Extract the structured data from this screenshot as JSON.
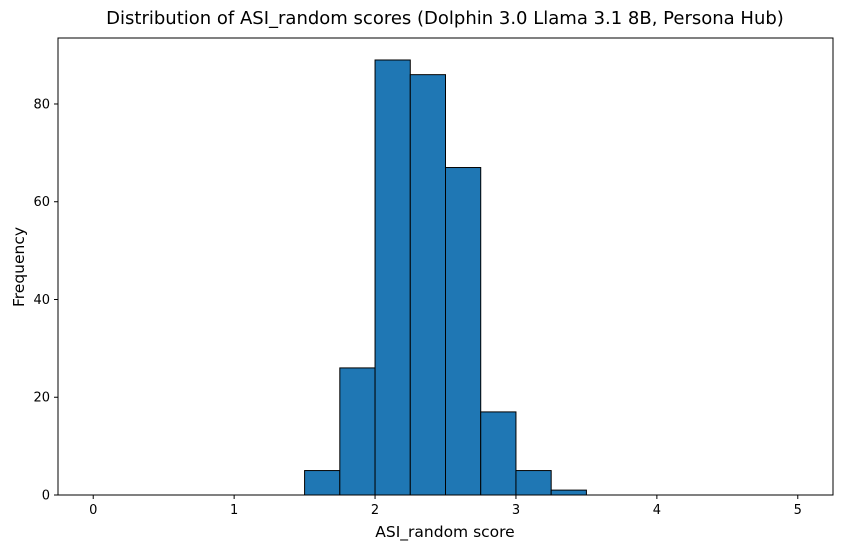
{
  "chart_data": {
    "type": "bar",
    "title": "Distribution of ASI_random scores (Dolphin 3.0 Llama 3.1 8B, Persona Hub)",
    "xlabel": "ASI_random score",
    "ylabel": "Frequency",
    "xlim": [
      -0.25,
      5.25
    ],
    "ylim": [
      0,
      93.5
    ],
    "xticks": [
      "0",
      "1",
      "2",
      "3",
      "4",
      "5"
    ],
    "xtick_values": [
      0,
      1,
      2,
      3,
      4,
      5
    ],
    "yticks": [
      "0",
      "20",
      "40",
      "60",
      "80"
    ],
    "ytick_values": [
      0,
      20,
      40,
      60,
      80
    ],
    "bin_edges": [
      0,
      0.25,
      0.5,
      0.75,
      1.0,
      1.25,
      1.5,
      1.75,
      2.0,
      2.25,
      2.5,
      2.75,
      3.0,
      3.25,
      3.5,
      3.75,
      4.0,
      4.25,
      4.5,
      4.75,
      5.0
    ],
    "values": [
      0,
      0,
      0,
      0,
      0,
      0,
      5,
      26,
      89,
      86,
      67,
      17,
      5,
      1,
      0,
      0,
      0,
      0,
      0,
      0
    ],
    "bar_color": "#1f77b4",
    "edge_color": "#000000",
    "grid": false,
    "legend": false
  }
}
